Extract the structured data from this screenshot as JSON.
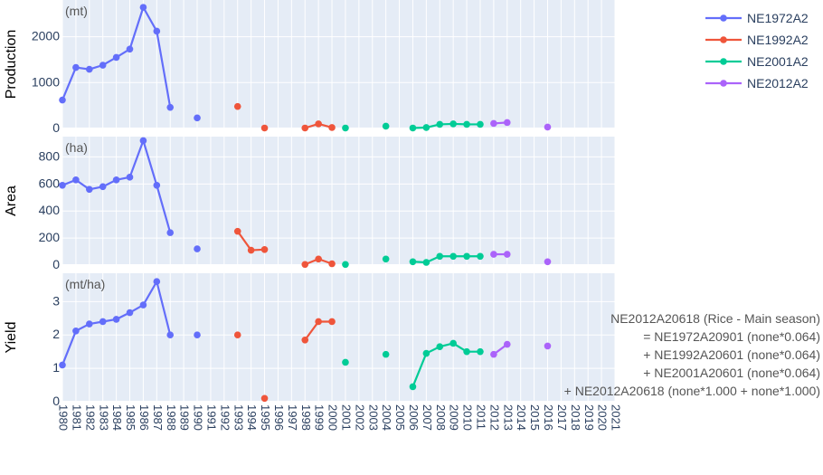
{
  "chart_data": {
    "type": "line",
    "layout": "three vertically stacked panels sharing one x axis (years 1980-2021)",
    "x_categories": [
      "1980",
      "1981",
      "1982",
      "1983",
      "1984",
      "1985",
      "1986",
      "1987",
      "1988",
      "1989",
      "1990",
      "1991",
      "1992",
      "1993",
      "1994",
      "1995",
      "1996",
      "1997",
      "1998",
      "1999",
      "2000",
      "2001",
      "2002",
      "2003",
      "2004",
      "2005",
      "2006",
      "2007",
      "2008",
      "2009",
      "2010",
      "2011",
      "2012",
      "2013",
      "2014",
      "2015",
      "2016",
      "2017",
      "2018",
      "2019",
      "2020",
      "2021"
    ],
    "colors": {
      "NE1972A2": "#636efa",
      "NE1992A2": "#ef553b",
      "NE2001A2": "#00cc96",
      "NE2012A2": "#ab63fa"
    },
    "legend": {
      "position": "top-right",
      "items": [
        "NE1972A2",
        "NE1992A2",
        "NE2001A2",
        "NE2012A2"
      ]
    },
    "panels": [
      {
        "ylabel": "Production",
        "unit": "(mt)",
        "ylim": [
          0,
          2800
        ],
        "yticks": [
          0,
          1000,
          2000
        ],
        "series": [
          {
            "name": "NE1972A2",
            "points": [
              [
                "1980",
                620
              ],
              [
                "1981",
                1330
              ],
              [
                "1982",
                1290
              ],
              [
                "1983",
                1380
              ],
              [
                "1984",
                1550
              ],
              [
                "1985",
                1730
              ],
              [
                "1986",
                2640
              ],
              [
                "1987",
                2120
              ],
              [
                "1988",
                460
              ],
              [
                "1990",
                230
              ]
            ]
          },
          {
            "name": "NE1992A2",
            "points": [
              [
                "1993",
                480
              ],
              [
                "1995",
                10
              ],
              [
                "1998",
                10
              ],
              [
                "1999",
                100
              ],
              [
                "2000",
                20
              ]
            ]
          },
          {
            "name": "NE2001A2",
            "points": [
              [
                "2001",
                10
              ],
              [
                "2004",
                50
              ],
              [
                "2006",
                10
              ],
              [
                "2007",
                20
              ],
              [
                "2008",
                90
              ],
              [
                "2009",
                100
              ],
              [
                "2010",
                90
              ],
              [
                "2011",
                90
              ]
            ]
          },
          {
            "name": "NE2012A2",
            "points": [
              [
                "2012",
                110
              ],
              [
                "2013",
                130
              ],
              [
                "2016",
                30
              ]
            ]
          }
        ]
      },
      {
        "ylabel": "Area",
        "unit": "(ha)",
        "ylim": [
          0,
          950
        ],
        "yticks": [
          0,
          200,
          400,
          600,
          800
        ],
        "series": [
          {
            "name": "NE1972A2",
            "points": [
              [
                "1980",
                590
              ],
              [
                "1981",
                630
              ],
              [
                "1982",
                560
              ],
              [
                "1983",
                580
              ],
              [
                "1984",
                630
              ],
              [
                "1985",
                650
              ],
              [
                "1986",
                920
              ],
              [
                "1987",
                590
              ],
              [
                "1988",
                240
              ],
              [
                "1990",
                120
              ]
            ]
          },
          {
            "name": "NE1992A2",
            "points": [
              [
                "1993",
                250
              ],
              [
                "1994",
                110
              ],
              [
                "1995",
                115
              ],
              [
                "1998",
                5
              ],
              [
                "1999",
                45
              ],
              [
                "2000",
                10
              ]
            ]
          },
          {
            "name": "NE2001A2",
            "points": [
              [
                "2001",
                5
              ],
              [
                "2004",
                45
              ],
              [
                "2006",
                25
              ],
              [
                "2007",
                20
              ],
              [
                "2008",
                65
              ],
              [
                "2009",
                65
              ],
              [
                "2010",
                65
              ],
              [
                "2011",
                65
              ]
            ]
          },
          {
            "name": "NE2012A2",
            "points": [
              [
                "2012",
                80
              ],
              [
                "2013",
                80
              ],
              [
                "2016",
                25
              ]
            ]
          }
        ]
      },
      {
        "ylabel": "Yield",
        "unit": "(mt/ha)",
        "ylim": [
          0,
          3.85
        ],
        "yticks": [
          0,
          1,
          2,
          3
        ],
        "series": [
          {
            "name": "NE1972A2",
            "points": [
              [
                "1980",
                1.1
              ],
              [
                "1981",
                2.12
              ],
              [
                "1982",
                2.33
              ],
              [
                "1983",
                2.4
              ],
              [
                "1984",
                2.47
              ],
              [
                "1985",
                2.67
              ],
              [
                "1986",
                2.9
              ],
              [
                "1987",
                3.6
              ],
              [
                "1988",
                2.0
              ],
              [
                "1990",
                2.0
              ]
            ]
          },
          {
            "name": "NE1992A2",
            "points": [
              [
                "1993",
                2.0
              ],
              [
                "1995",
                0.1
              ],
              [
                "1998",
                1.85
              ],
              [
                "1999",
                2.4
              ],
              [
                "2000",
                2.4
              ]
            ]
          },
          {
            "name": "NE2001A2",
            "points": [
              [
                "2001",
                1.18
              ],
              [
                "2004",
                1.42
              ],
              [
                "2006",
                0.45
              ],
              [
                "2007",
                1.45
              ],
              [
                "2008",
                1.65
              ],
              [
                "2009",
                1.75
              ],
              [
                "2010",
                1.5
              ],
              [
                "2011",
                1.5
              ]
            ]
          },
          {
            "name": "NE2012A2",
            "points": [
              [
                "2012",
                1.42
              ],
              [
                "2013",
                1.72
              ],
              [
                "2016",
                1.67
              ]
            ]
          }
        ]
      }
    ]
  },
  "annotation": {
    "lines": [
      "NE2012A20618 (Rice - Main season)",
      "= NE1972A20901 (none*0.064)",
      "+ NE1992A20601 (none*0.064)",
      "+ NE2001A20601 (none*0.064)",
      "+ NE2012A20618 (none*1.000 + none*1.000)"
    ]
  }
}
